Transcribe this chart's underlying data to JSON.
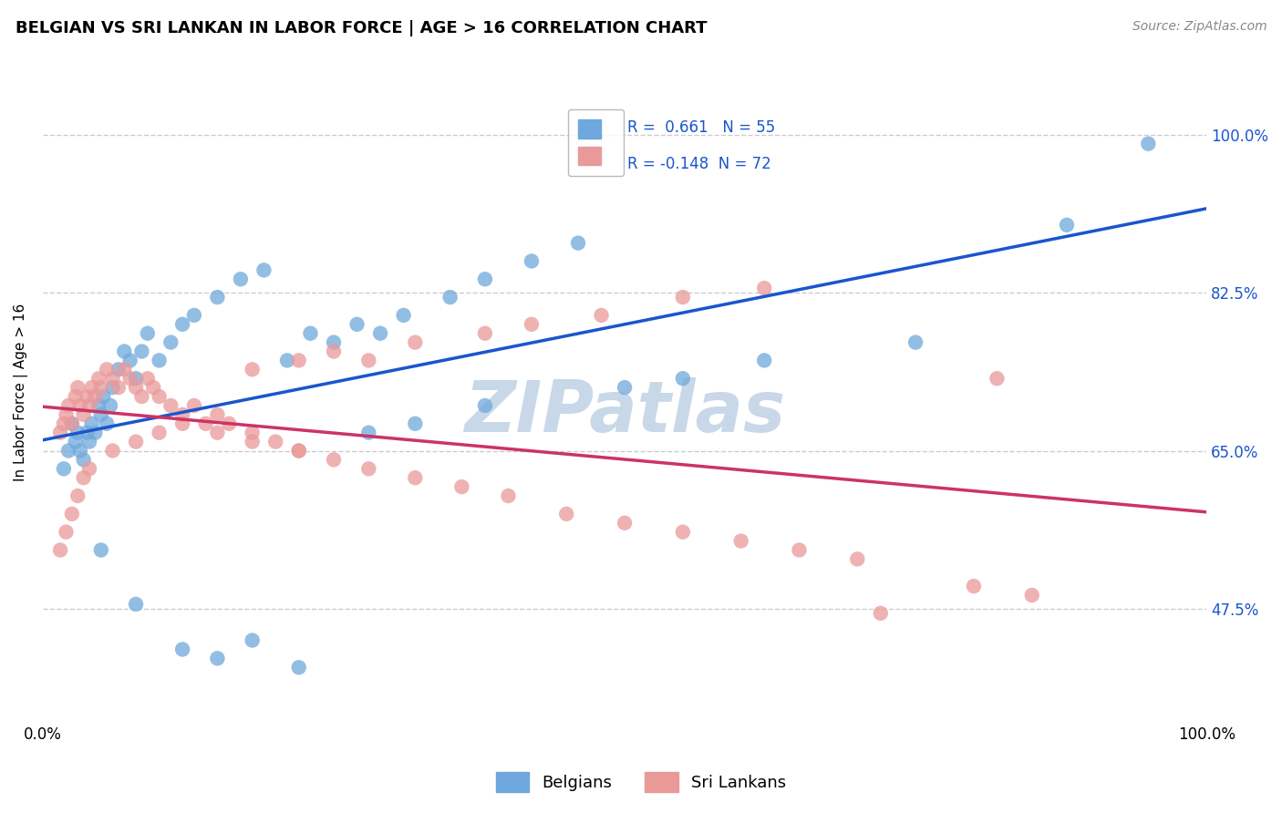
{
  "title": "BELGIAN VS SRI LANKAN IN LABOR FORCE | AGE > 16 CORRELATION CHART",
  "source": "Source: ZipAtlas.com",
  "ylabel": "In Labor Force | Age > 16",
  "ytick_labels": [
    "47.5%",
    "65.0%",
    "82.5%",
    "100.0%"
  ],
  "ytick_values": [
    0.475,
    0.65,
    0.825,
    1.0
  ],
  "xlim": [
    0.0,
    1.0
  ],
  "ylim": [
    0.35,
    1.08
  ],
  "r_belgian": 0.661,
  "n_belgian": 55,
  "r_srilankan": -0.148,
  "n_srilankan": 72,
  "belgian_color": "#6fa8dc",
  "srilankan_color": "#ea9999",
  "trendline_belgian_color": "#1a56cc",
  "trendline_srilankan_color": "#cc3366",
  "watermark_color": "#c8d8e8",
  "belgian_scatter_x": [
    0.018,
    0.022,
    0.025,
    0.028,
    0.03,
    0.032,
    0.035,
    0.038,
    0.04,
    0.042,
    0.045,
    0.048,
    0.05,
    0.052,
    0.055,
    0.058,
    0.06,
    0.065,
    0.07,
    0.075,
    0.08,
    0.085,
    0.09,
    0.1,
    0.11,
    0.12,
    0.13,
    0.15,
    0.17,
    0.19,
    0.21,
    0.23,
    0.25,
    0.27,
    0.29,
    0.31,
    0.35,
    0.38,
    0.42,
    0.46,
    0.05,
    0.08,
    0.12,
    0.15,
    0.18,
    0.22,
    0.28,
    0.32,
    0.38,
    0.5,
    0.55,
    0.62,
    0.75,
    0.88,
    0.95
  ],
  "belgian_scatter_y": [
    0.63,
    0.65,
    0.68,
    0.66,
    0.67,
    0.65,
    0.64,
    0.67,
    0.66,
    0.68,
    0.67,
    0.7,
    0.69,
    0.71,
    0.68,
    0.7,
    0.72,
    0.74,
    0.76,
    0.75,
    0.73,
    0.76,
    0.78,
    0.75,
    0.77,
    0.79,
    0.8,
    0.82,
    0.84,
    0.85,
    0.75,
    0.78,
    0.77,
    0.79,
    0.78,
    0.8,
    0.82,
    0.84,
    0.86,
    0.88,
    0.54,
    0.48,
    0.43,
    0.42,
    0.44,
    0.41,
    0.67,
    0.68,
    0.7,
    0.72,
    0.73,
    0.75,
    0.77,
    0.9,
    0.99
  ],
  "srilankan_scatter_x": [
    0.015,
    0.018,
    0.02,
    0.022,
    0.025,
    0.028,
    0.03,
    0.032,
    0.035,
    0.038,
    0.04,
    0.042,
    0.045,
    0.048,
    0.05,
    0.055,
    0.06,
    0.065,
    0.07,
    0.075,
    0.08,
    0.085,
    0.09,
    0.095,
    0.1,
    0.11,
    0.12,
    0.13,
    0.14,
    0.15,
    0.16,
    0.18,
    0.2,
    0.22,
    0.25,
    0.28,
    0.32,
    0.36,
    0.4,
    0.45,
    0.5,
    0.55,
    0.6,
    0.65,
    0.7,
    0.8,
    0.85,
    0.22,
    0.18,
    0.15,
    0.12,
    0.1,
    0.08,
    0.06,
    0.04,
    0.035,
    0.03,
    0.025,
    0.02,
    0.015,
    0.18,
    0.22,
    0.25,
    0.28,
    0.32,
    0.38,
    0.42,
    0.48,
    0.55,
    0.62,
    0.72,
    0.82
  ],
  "srilankan_scatter_y": [
    0.67,
    0.68,
    0.69,
    0.7,
    0.68,
    0.71,
    0.72,
    0.7,
    0.69,
    0.71,
    0.7,
    0.72,
    0.71,
    0.73,
    0.72,
    0.74,
    0.73,
    0.72,
    0.74,
    0.73,
    0.72,
    0.71,
    0.73,
    0.72,
    0.71,
    0.7,
    0.69,
    0.7,
    0.68,
    0.69,
    0.68,
    0.67,
    0.66,
    0.65,
    0.64,
    0.63,
    0.62,
    0.61,
    0.6,
    0.58,
    0.57,
    0.56,
    0.55,
    0.54,
    0.53,
    0.5,
    0.49,
    0.65,
    0.66,
    0.67,
    0.68,
    0.67,
    0.66,
    0.65,
    0.63,
    0.62,
    0.6,
    0.58,
    0.56,
    0.54,
    0.74,
    0.75,
    0.76,
    0.75,
    0.77,
    0.78,
    0.79,
    0.8,
    0.82,
    0.83,
    0.47,
    0.73
  ]
}
